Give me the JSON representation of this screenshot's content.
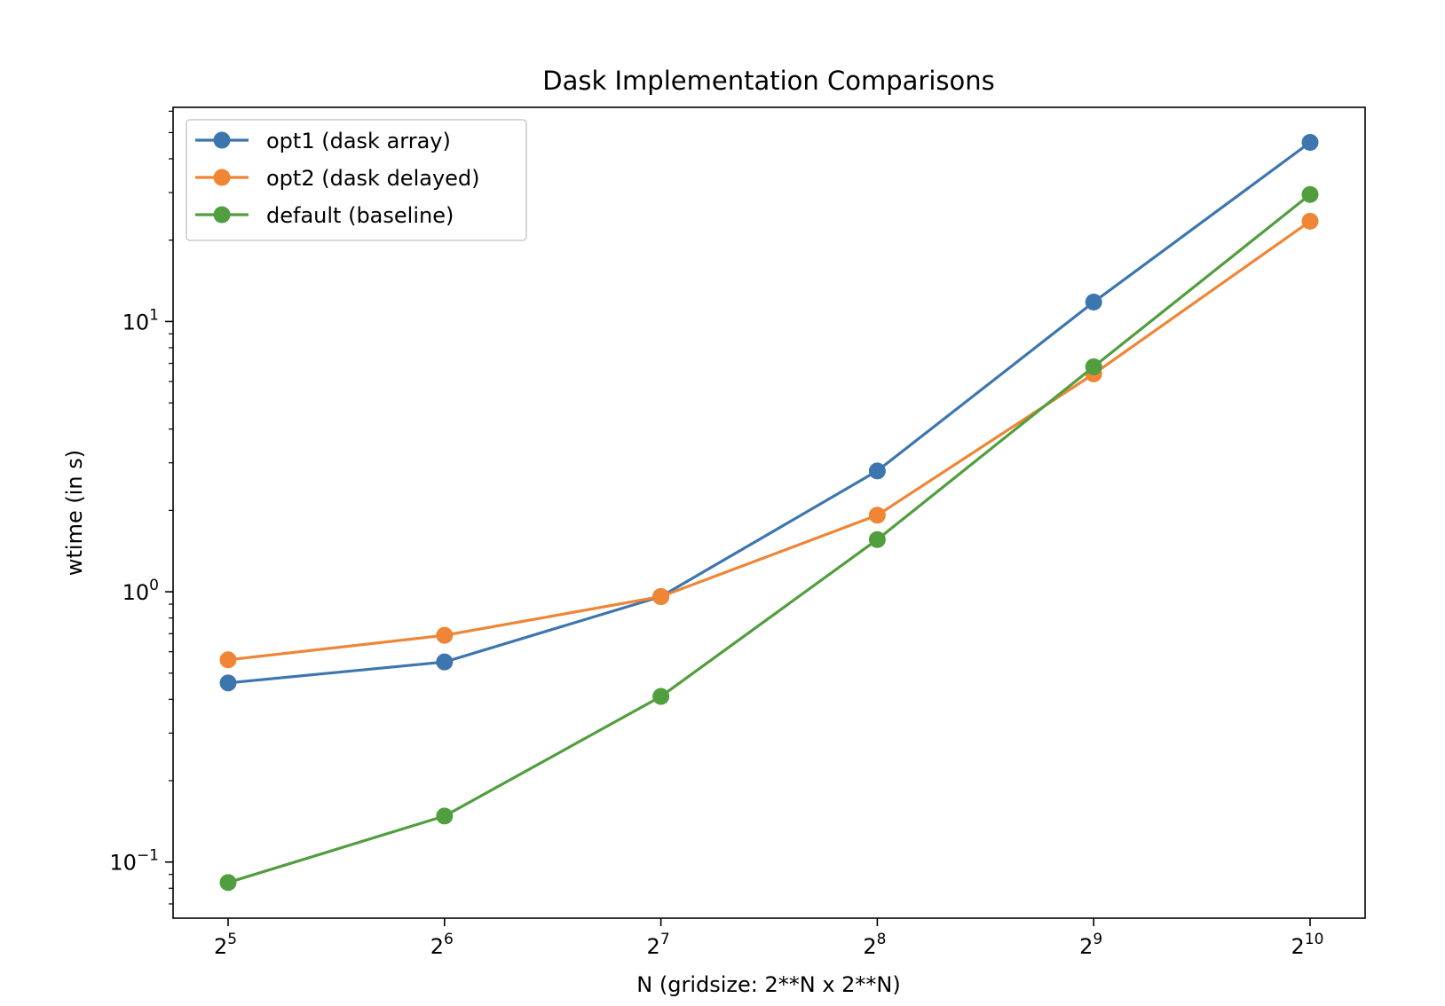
{
  "chart_data": {
    "type": "line",
    "title": "Dask Implementation Comparisons",
    "xlabel": "N (gridsize: 2**N x 2**N)",
    "ylabel": "wtime (in s)",
    "x": [
      5,
      6,
      7,
      8,
      9,
      10
    ],
    "x_tick_base": "2",
    "x_tick_exponents": [
      "5",
      "6",
      "7",
      "8",
      "9",
      "10"
    ],
    "yscale": "log",
    "ylim": [
      0.062,
      62
    ],
    "y_ticks": [
      {
        "value": 0.1,
        "base": "10",
        "exp": "−1"
      },
      {
        "value": 1,
        "base": "10",
        "exp": "0"
      },
      {
        "value": 10,
        "base": "10",
        "exp": "1"
      }
    ],
    "grid": false,
    "legend_position": "upper-left",
    "series": [
      {
        "name": "opt1 (dask array)",
        "color": "#3d76af",
        "values": [
          0.46,
          0.55,
          0.96,
          2.8,
          11.8,
          46
        ]
      },
      {
        "name": "opt2 (dask delayed)",
        "color": "#ef8535",
        "values": [
          0.56,
          0.69,
          0.96,
          1.92,
          6.4,
          23.5
        ]
      },
      {
        "name": "default (baseline)",
        "color": "#519e3e",
        "values": [
          0.084,
          0.148,
          0.41,
          1.56,
          6.8,
          29.5
        ]
      }
    ]
  }
}
